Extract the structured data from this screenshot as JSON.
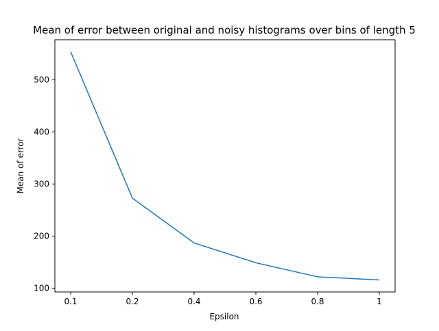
{
  "chart_data": {
    "type": "line",
    "title": "Mean of error between original and noisy histograms over bins of length 5",
    "xlabel": "Epsilon",
    "ylabel": "Mean of error",
    "categories": [
      "0.1",
      "0.2",
      "0.4",
      "0.6",
      "0.8",
      "1"
    ],
    "series": [
      {
        "values": [
          554,
          273,
          187,
          149,
          122,
          116
        ],
        "color": "#1f77b4"
      }
    ],
    "yticks": [
      100,
      200,
      300,
      400,
      500
    ],
    "ylim": [
      93,
      577
    ],
    "grid": false,
    "legend": "none"
  }
}
